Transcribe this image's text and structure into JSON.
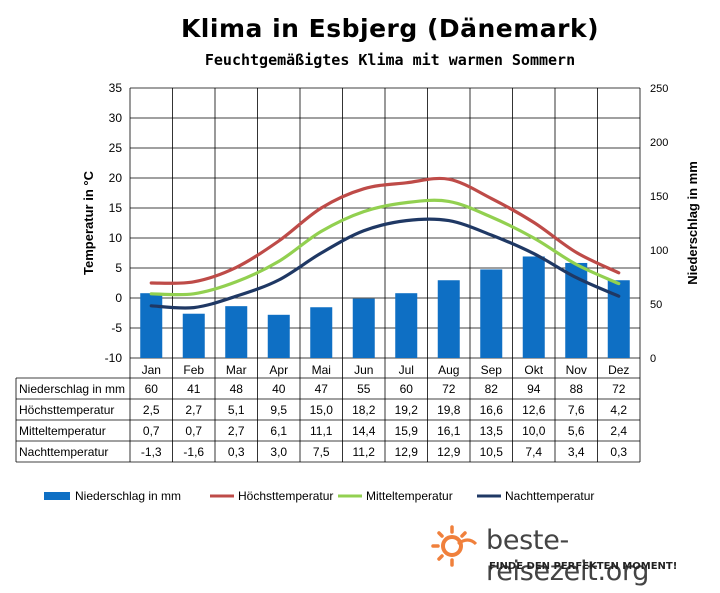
{
  "chart_data": {
    "type": "bar+line",
    "title": "Klima in Esbjerg (Dänemark)",
    "subtitle": "Feuchtgemäßigtes Klima mit warmen Sommern",
    "ylabel_left": "Temperatur in °C",
    "ylabel_right": "Niederschlag in mm",
    "ylim_left": [
      -10,
      35
    ],
    "ylim_right": [
      0,
      250
    ],
    "yticks_left": [
      "35",
      "30",
      "25",
      "20",
      "15",
      "10",
      "5",
      "0",
      "-5",
      "-10"
    ],
    "yticks_right": [
      "250",
      "200",
      "150",
      "100",
      "50",
      "0"
    ],
    "categories": [
      "Jan",
      "Feb",
      "Mar",
      "Apr",
      "Mai",
      "Jun",
      "Jul",
      "Aug",
      "Sep",
      "Okt",
      "Nov",
      "Dez"
    ],
    "series": [
      {
        "name": "Niederschlag in mm",
        "type": "bar",
        "axis": "right",
        "color": "#0e6fc4",
        "values": [
          60,
          41,
          48,
          40,
          47,
          55,
          60,
          72,
          82,
          94,
          88,
          72
        ],
        "labels": [
          "60",
          "41",
          "48",
          "40",
          "47",
          "55",
          "60",
          "72",
          "82",
          "94",
          "88",
          "72"
        ]
      },
      {
        "name": "Höchsttemperatur",
        "type": "line",
        "axis": "left",
        "color": "#be4b48",
        "values": [
          2.5,
          2.7,
          5.1,
          9.5,
          15.0,
          18.2,
          19.2,
          19.8,
          16.6,
          12.6,
          7.6,
          4.2
        ],
        "labels": [
          "2,5",
          "2,7",
          "5,1",
          "9,5",
          "15,0",
          "18,2",
          "19,2",
          "19,8",
          "16,6",
          "12,6",
          "7,6",
          "4,2"
        ]
      },
      {
        "name": "Mitteltemperatur",
        "type": "line",
        "axis": "left",
        "color": "#92d050",
        "values": [
          0.7,
          0.7,
          2.7,
          6.1,
          11.1,
          14.4,
          15.9,
          16.1,
          13.5,
          10.0,
          5.6,
          2.4
        ],
        "labels": [
          "0,7",
          "0,7",
          "2,7",
          "6,1",
          "11,1",
          "14,4",
          "15,9",
          "16,1",
          "13,5",
          "10,0",
          "5,6",
          "2,4"
        ]
      },
      {
        "name": "Nachttemperatur",
        "type": "line",
        "axis": "left",
        "color": "#1f3864",
        "values": [
          -1.3,
          -1.6,
          0.3,
          3.0,
          7.5,
          11.2,
          12.9,
          12.9,
          10.5,
          7.4,
          3.4,
          0.3
        ],
        "labels": [
          "-1,3",
          "-1,6",
          "0,3",
          "3,0",
          "7,5",
          "11,2",
          "12,9",
          "12,9",
          "10,5",
          "7,4",
          "3,4",
          "0,3"
        ]
      }
    ],
    "grid": true,
    "legend": "bottom"
  },
  "branding": {
    "name": "beste-reisezeit.org",
    "tagline": "FINDE DEN PERFEKTEN MOMENT!"
  }
}
